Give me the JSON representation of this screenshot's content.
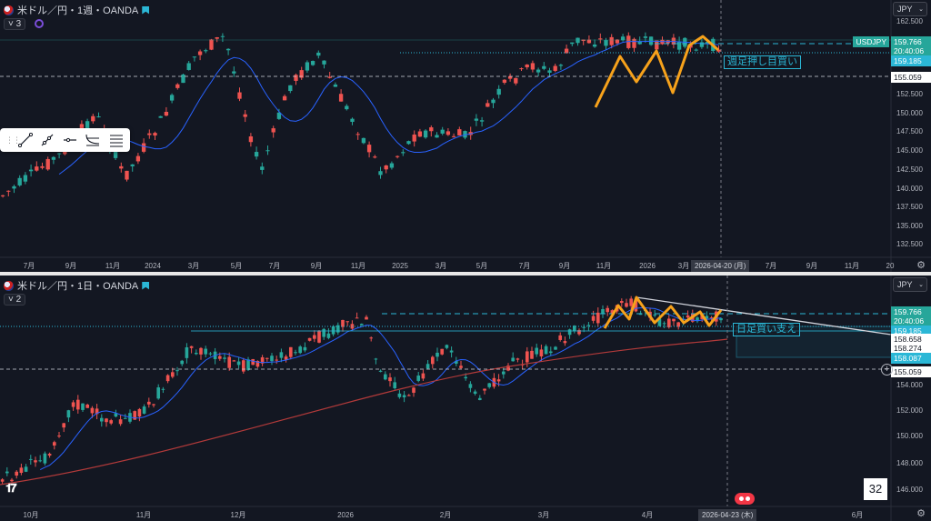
{
  "top": {
    "header": {
      "symbol": "米ドル／円・1週・OANDA"
    },
    "indicator_count": "3",
    "currency": "JPY",
    "ticker_tag": "USDJPY",
    "price_labels": [
      {
        "text": "159.766",
        "bg": "#26a69a",
        "color": "#ffffff"
      },
      {
        "text": "20:40:06",
        "bg": "#26a69a",
        "color": "#ffffff"
      },
      {
        "text": "159.185",
        "bg": "#2bb7d6",
        "color": "#ffffff"
      },
      {
        "text": "155.059",
        "bg": "#ffffff",
        "color": "#131722"
      }
    ],
    "y_ticks": [
      "162.500",
      "152.500",
      "150.000",
      "147.500",
      "145.000",
      "142.500",
      "140.000",
      "137.500",
      "135.000",
      "132.500"
    ],
    "x_ticks": [
      "7月",
      "9月",
      "11月",
      "2024",
      "3月",
      "5月",
      "7月",
      "9月",
      "11月",
      "2025",
      "3月",
      "5月",
      "7月",
      "9月",
      "11月",
      "2026",
      "3月",
      "7月",
      "9月",
      "11月",
      "20"
    ],
    "date_tag": "2026-04-20 (月)",
    "annotation": "週足押し目買い"
  },
  "bottom": {
    "header": {
      "symbol": "米ドル／円・1日・OANDA"
    },
    "indicator_count": "2",
    "currency": "JPY",
    "price_labels": [
      {
        "text": "159.766",
        "bg": "#26a69a",
        "color": "#ffffff"
      },
      {
        "text": "20:40:06",
        "bg": "#26a69a",
        "color": "#ffffff"
      },
      {
        "text": "159.185",
        "bg": "#2bb7d6",
        "color": "#ffffff"
      },
      {
        "text": "158.658",
        "bg": "#ffffff",
        "color": "#131722"
      },
      {
        "text": "158.274",
        "bg": "#ffffff",
        "color": "#131722"
      },
      {
        "text": "158.087",
        "bg": "#2bb7d6",
        "color": "#ffffff"
      },
      {
        "text": "155.059",
        "bg": "#ffffff",
        "color": "#131722"
      }
    ],
    "y_ticks": [
      "154.000",
      "152.000",
      "150.000",
      "148.000",
      "146.000"
    ],
    "x_ticks": [
      "10月",
      "11月",
      "12月",
      "2026",
      "2月",
      "3月",
      "4月",
      "6月"
    ],
    "date_tag": "2026-04-23 (木)",
    "annotation": "日足買い支え",
    "page_number": "32",
    "logo": "TV"
  },
  "icons": {
    "gear": "gear-icon",
    "plus": "plus-icon",
    "record": "record-icon"
  }
}
